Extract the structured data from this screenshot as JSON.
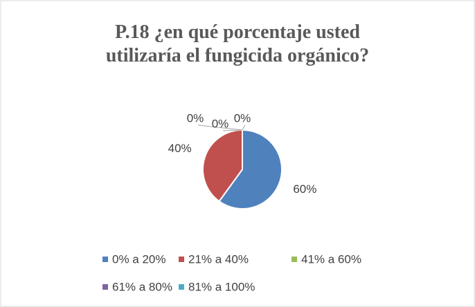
{
  "chart_data": {
    "type": "pie",
    "title": "P.18 ¿en qué porcentaje usted utilizaría el fungicida orgánico?",
    "categories": [
      "0% a 20%",
      "21% a 40%",
      "41% a 60%",
      "61% a 80%",
      "81% a 100%"
    ],
    "values": [
      60,
      40,
      0,
      0,
      0
    ],
    "value_labels": [
      "60%",
      "40%",
      "0%",
      "0%",
      "0%"
    ],
    "colors": [
      "#4f81bd",
      "#c0504d",
      "#9bbb59",
      "#8064a2",
      "#4bacc6"
    ],
    "legend": "bottom"
  }
}
